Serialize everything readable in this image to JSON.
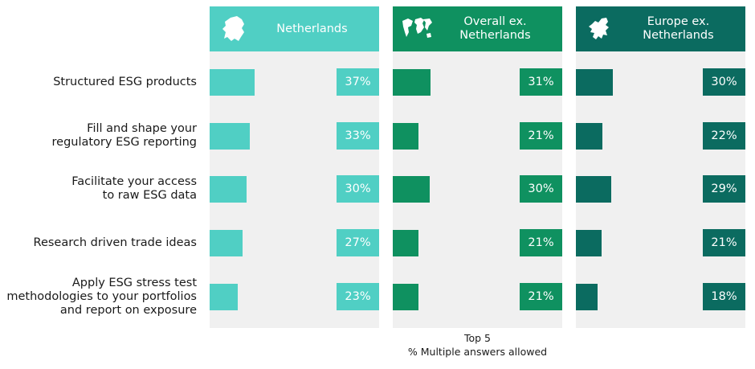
{
  "chart_data": {
    "type": "bar",
    "categories": [
      "Structured ESG products",
      "Fill and shape your regulatory ESG reporting",
      "Facilitate your access to raw ESG data",
      "Research driven trade ideas",
      "Apply ESG stress test methodologies to your portfolios and report on exposure"
    ],
    "category_lines": [
      [
        "Structured ESG products"
      ],
      [
        "Fill and shape your",
        "regulatory ESG reporting"
      ],
      [
        "Facilitate your access",
        "to raw ESG data"
      ],
      [
        "Research driven trade ideas"
      ],
      [
        "Apply ESG stress test",
        "methodologies to your portfolios",
        "and report on exposure"
      ]
    ],
    "series": [
      {
        "name": "Netherlands",
        "title_lines": [
          "Netherlands"
        ],
        "values": [
          37,
          33,
          30,
          27,
          23
        ],
        "labels": [
          "37%",
          "33%",
          "30%",
          "27%",
          "23%"
        ],
        "color": "#50cfc4",
        "icon": "netherlands-map-icon"
      },
      {
        "name": "Overall ex. Netherlands",
        "title_lines": [
          "Overall ex.",
          "Netherlands"
        ],
        "values": [
          31,
          21,
          30,
          21,
          21
        ],
        "labels": [
          "31%",
          "21%",
          "30%",
          "21%",
          "21%"
        ],
        "color": "#0f9160",
        "icon": "world-map-icon"
      },
      {
        "name": "Europe ex. Netherlands",
        "title_lines": [
          "Europe ex.",
          "Netherlands"
        ],
        "values": [
          30,
          22,
          29,
          21,
          18
        ],
        "labels": [
          "30%",
          "22%",
          "29%",
          "21%",
          "18%"
        ],
        "color": "#0b6b60",
        "icon": "europe-map-icon"
      }
    ],
    "footnote": [
      "Top 5",
      "% Multiple answers allowed"
    ]
  }
}
